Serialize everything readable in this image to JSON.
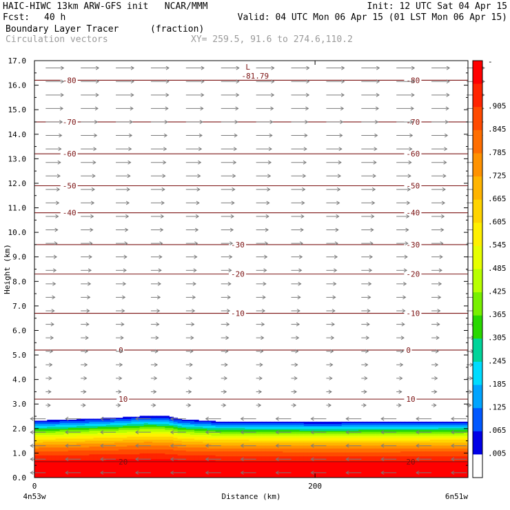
{
  "header": {
    "title_left": "HAIC-HIWC 13km ARW-GFS init   NCAR/MMM",
    "init": "Init: 12 UTC Sat 04 Apr 15",
    "fcst_label": "Fcst:",
    "fcst_value": "40 h",
    "valid": "Valid: 04 UTC Mon 06 Apr 15 (01 LST Mon 06 Apr 15)",
    "field_name": "Boundary Layer Tracer",
    "field_units": "(fraction)",
    "vectors_label": "Circulation vectors",
    "xy_label": "XY= 259.5, 91.6 to 274.6,110.2"
  },
  "chart_data": {
    "type": "heatmap",
    "ylabel": "Height (km)",
    "xlabel": "Distance (km)",
    "xlim": [
      0,
      309
    ],
    "ylim": [
      0,
      17
    ],
    "y_ticks": [
      "0.0",
      "1.0",
      "2.0",
      "3.0",
      "4.0",
      "5.0",
      "6.0",
      "7.0",
      "8.0",
      "9.0",
      "10.0",
      "11.0",
      "12.0",
      "13.0",
      "14.0",
      "15.0",
      "16.0",
      "17.0"
    ],
    "x_ticks": [
      {
        "value": 0,
        "label": "0"
      },
      {
        "value": 200,
        "label": "200"
      }
    ],
    "x_end_labels": {
      "left": "4n53w",
      "right": "6n51w"
    },
    "colorbar_labels": [
      "-",
      ".905",
      ".845",
      ".785",
      ".725",
      ".665",
      ".605",
      ".545",
      ".485",
      ".425",
      ".365",
      ".305",
      ".245",
      ".185",
      ".125",
      ".065",
      ".005"
    ],
    "colorbar_colors": [
      "#ff0000",
      "#ff2400",
      "#ff4a00",
      "#ff6e00",
      "#ff9200",
      "#ffb400",
      "#ffd400",
      "#fff000",
      "#e6ff00",
      "#b8ff00",
      "#78f000",
      "#28d800",
      "#00d49a",
      "#00dcff",
      "#00a4ff",
      "#0058ff",
      "#0000e6",
      "#ffffff"
    ],
    "tracer_profile": [
      {
        "height": 0.0,
        "value": 1.0
      },
      {
        "height": 0.6,
        "value": 0.97
      },
      {
        "height": 1.0,
        "value": 0.85
      },
      {
        "height": 1.3,
        "value": 0.72
      },
      {
        "height": 1.6,
        "value": 0.55
      },
      {
        "height": 1.85,
        "value": 0.38
      },
      {
        "height": 2.05,
        "value": 0.2
      },
      {
        "height": 2.2,
        "value": 0.07
      },
      {
        "height": 2.3,
        "value": 0.005
      }
    ],
    "bl_top": [
      {
        "x": 0,
        "height": 2.32
      },
      {
        "x": 30,
        "height": 2.38
      },
      {
        "x": 60,
        "height": 2.45
      },
      {
        "x": 80,
        "height": 2.52
      },
      {
        "x": 95,
        "height": 2.5
      },
      {
        "x": 105,
        "height": 2.38
      },
      {
        "x": 130,
        "height": 2.3
      },
      {
        "x": 200,
        "height": 2.27
      },
      {
        "x": 260,
        "height": 2.28
      },
      {
        "x": 309,
        "height": 2.3
      }
    ],
    "temperature_contours": [
      {
        "label": "-80",
        "height": 16.2
      },
      {
        "label": "-70",
        "height": 14.5
      },
      {
        "label": "-60",
        "height": 13.2
      },
      {
        "label": "-50",
        "height": 11.9
      },
      {
        "label": "-40",
        "height": 10.8
      },
      {
        "label": "-30",
        "height": 9.5
      },
      {
        "label": "-20",
        "height": 8.3
      },
      {
        "label": "-10",
        "height": 6.7
      },
      {
        "label": "0",
        "height": 5.2
      },
      {
        "label": "10",
        "height": 3.2
      },
      {
        "label": "20",
        "height": 0.65
      }
    ],
    "low_label": {
      "marker": "L",
      "value": "-81.79",
      "x": 150,
      "height": 16.55
    },
    "vector_field": {
      "upper_direction": "eastward",
      "lower_direction": "westward",
      "reversal_height": 2.5
    },
    "colors": {
      "contour": "#7a1010",
      "vector": "#7a7a7a"
    }
  }
}
